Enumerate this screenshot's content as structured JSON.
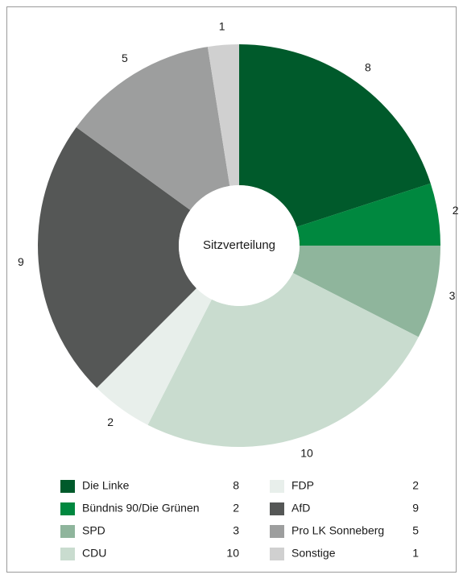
{
  "chart_data": {
    "type": "donut",
    "title": "Sitzverteilung",
    "categories": [
      "Die Linke",
      "Bündnis 90/Die Grünen",
      "SPD",
      "CDU",
      "FDP",
      "AfD",
      "Pro LK Sonneberg",
      "Sonstige"
    ],
    "values": [
      8,
      2,
      3,
      10,
      2,
      9,
      5,
      1
    ],
    "colors": [
      "#005a2b",
      "#00883f",
      "#8fb59c",
      "#c9dccf",
      "#e8efeb",
      "#555756",
      "#9d9e9e",
      "#d0d0d0"
    ],
    "legend": "bottom"
  }
}
